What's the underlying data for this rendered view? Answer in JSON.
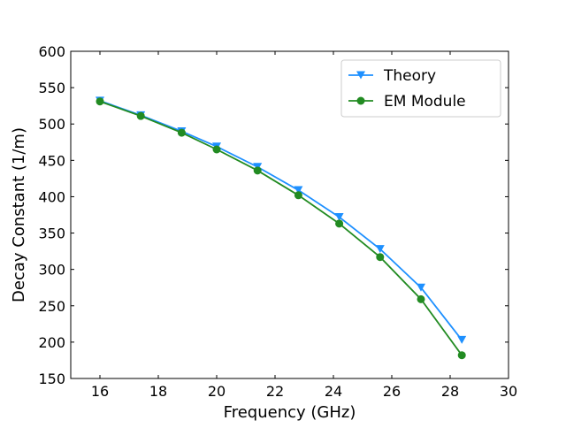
{
  "chart_data": {
    "type": "line",
    "title": "",
    "xlabel": "Frequency (GHz)",
    "ylabel": "Decay Constant (1/m)",
    "xlim": [
      15,
      30
    ],
    "ylim": [
      150,
      600
    ],
    "xticks": [
      16,
      18,
      20,
      22,
      24,
      26,
      28,
      30
    ],
    "yticks": [
      150,
      200,
      250,
      300,
      350,
      400,
      450,
      500,
      550,
      600
    ],
    "grid": false,
    "legend_position": "top-right",
    "x": [
      16,
      17.4,
      18.8,
      20,
      21.4,
      22.8,
      24.2,
      25.6,
      27,
      28.4
    ],
    "series": [
      {
        "name": "Theory",
        "color": "#1e90ff",
        "marker": "triangle-down",
        "values": [
          532,
          512,
          490,
          469,
          441,
          409,
          372,
          328,
          275,
          203
        ]
      },
      {
        "name": "EM Module",
        "color": "#228b22",
        "marker": "circle",
        "values": [
          531,
          511,
          488,
          465,
          436,
          402,
          363,
          317,
          259,
          182
        ]
      }
    ]
  }
}
